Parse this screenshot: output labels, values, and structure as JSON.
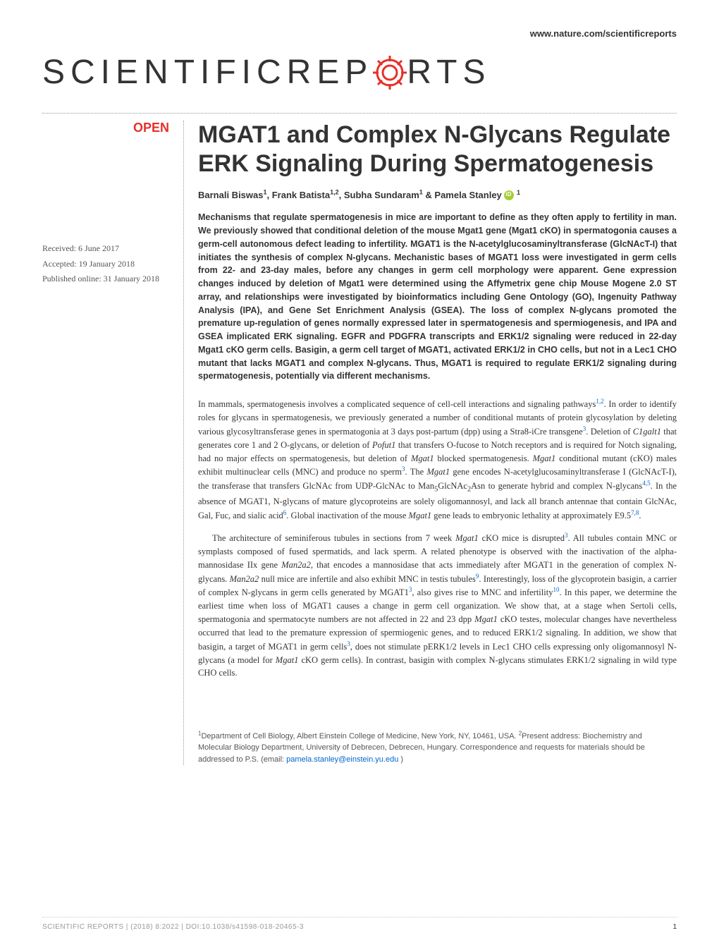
{
  "header": {
    "url": "www.nature.com/scientificreports"
  },
  "journal": {
    "logo_part1": "SCIENTIFIC ",
    "logo_part2": "REP",
    "logo_part3": "RTS"
  },
  "badge": {
    "open": "OPEN"
  },
  "article": {
    "title": "MGAT1 and Complex N-Glycans Regulate ERK Signaling During Spermatogenesis",
    "received": "Received: 6 June 2017",
    "accepted": "Accepted: 19 January 2018",
    "published": "Published online: 31 January 2018",
    "authors_html": "Barnali Biswas<sup>1</sup>, Frank Batista<sup>1,2</sup>, Subha Sundaram<sup>1</sup> & Pamela Stanley",
    "author_sup_last": "1",
    "abstract": "Mechanisms that regulate spermatogenesis in mice are important to define as they often apply to fertility in man. We previously showed that conditional deletion of the mouse Mgat1 gene (Mgat1 cKO) in spermatogonia causes a germ-cell autonomous defect leading to infertility. MGAT1 is the N-acetylglucosaminyltransferase (GlcNAcT-I) that initiates the synthesis of complex N-glycans. Mechanistic bases of MGAT1 loss were investigated in germ cells from 22- and 23-day males, before any changes in germ cell morphology were apparent. Gene expression changes induced by deletion of Mgat1 were determined using the Affymetrix gene chip Mouse Mogene 2.0 ST array, and relationships were investigated by bioinformatics including Gene Ontology (GO), Ingenuity Pathway Analysis (IPA), and Gene Set Enrichment Analysis (GSEA). The loss of complex N-glycans promoted the premature up-regulation of genes normally expressed later in spermatogenesis and spermiogenesis, and IPA and GSEA implicated ERK signaling. EGFR and PDGFRA transcripts and ERK1/2 signaling were reduced in 22-day Mgat1 cKO germ cells. Basigin, a germ cell target of MGAT1, activated ERK1/2 in CHO cells, but not in a Lec1 CHO mutant that lacks MGAT1 and complex N-glycans. Thus, MGAT1 is required to regulate ERK1/2 signaling during spermatogenesis, potentially via different mechanisms.",
    "para1": "In mammals, spermatogenesis involves a complicated sequence of cell-cell interactions and signaling pathways<sup>1,2</sup>. In order to identify roles for glycans in spermatogenesis, we previously generated a number of conditional mutants of protein glycosylation by deleting various glycosyltransferase genes in spermatogonia at 3 days post-partum (dpp) using a Stra8-iCre transgene<sup>3</sup>. Deletion of <em>C1galt1</em> that generates core 1 and 2 O-glycans, or deletion of <em>Pofut1</em> that transfers O-fucose to Notch receptors and is required for Notch signaling, had no major effects on spermatogenesis, but deletion of <em>Mgat1</em> blocked spermatogenesis. <em>Mgat1</em> conditional mutant (cKO) males exhibit multinuclear cells (MNC) and produce no sperm<sup>3</sup>. The <em>Mgat1</em> gene encodes N-acetylglucosaminyltransferase I (GlcNAcT-I), the transferase that transfers GlcNAc from UDP-GlcNAc to Man<sub>5</sub>GlcNAc<sub>2</sub>Asn to generate hybrid and complex N-glycans<sup>4,5</sup>. In the absence of MGAT1, N-glycans of mature glycoproteins are solely oligomannosyl, and lack all branch antennae that contain GlcNAc, Gal, Fuc, and sialic acid<sup>6</sup>. Global inactivation of the mouse <em>Mgat1</em> gene leads to embryonic lethality at approximately E9.5<sup>7,8</sup>.",
    "para2": "The architecture of seminiferous tubules in sections from 7 week <em>Mgat1</em> cKO mice is disrupted<sup>3</sup>. All tubules contain MNC or symplasts composed of fused spermatids, and lack sperm. A related phenotype is observed with the inactivation of the alpha-mannosidase IIx gene <em>Man2a2</em>, that encodes a mannosidase that acts immediately after MGAT1 in the generation of complex N-glycans. <em>Man2a2</em> null mice are infertile and also exhibit MNC in testis tubules<sup>9</sup>. Interestingly, loss of the glycoprotein basigin, a carrier of complex N-glycans in germ cells generated by MGAT1<sup>3</sup>, also gives rise to MNC and infertility<sup>10</sup>. In this paper, we determine the earliest time when loss of MGAT1 causes a change in germ cell organization. We show that, at a stage when Sertoli cells, spermatogonia and spermatocyte numbers are not affected in 22 and 23 dpp <em>Mgat1</em> cKO testes, molecular changes have nevertheless occurred that lead to the premature expression of spermiogenic genes, and to reduced ERK1/2 signaling. In addition, we show that basigin, a target of MGAT1 in germ cells<sup>3</sup>, does not stimulate pERK1/2 levels in Lec1 CHO cells expressing only oligomannosyl N-glycans (a model for <em>Mgat1</em> cKO germ cells). In contrast, basigin with complex N-glycans stimulates ERK1/2 signaling in wild type CHO cells.",
    "affiliations": "<sup>1</sup>Department of Cell Biology, Albert Einstein College of Medicine, New York, NY, 10461, USA. <sup>2</sup>Present address: Biochemistry and Molecular Biology Department, University of Debrecen, Debrecen, Hungary. Correspondence and requests for materials should be addressed to P.S. (email: ",
    "email": "pamela.stanley@einstein.yu.edu",
    "email_close": ")"
  },
  "footer": {
    "citation": "SCIENTIFIC REPORTS | (2018) 8:2022 | DOI:10.1038/s41598-018-20465-3",
    "page": "1"
  },
  "colors": {
    "red": "#e6302a",
    "link": "#0066cc",
    "orcid": "#a6ce39"
  }
}
